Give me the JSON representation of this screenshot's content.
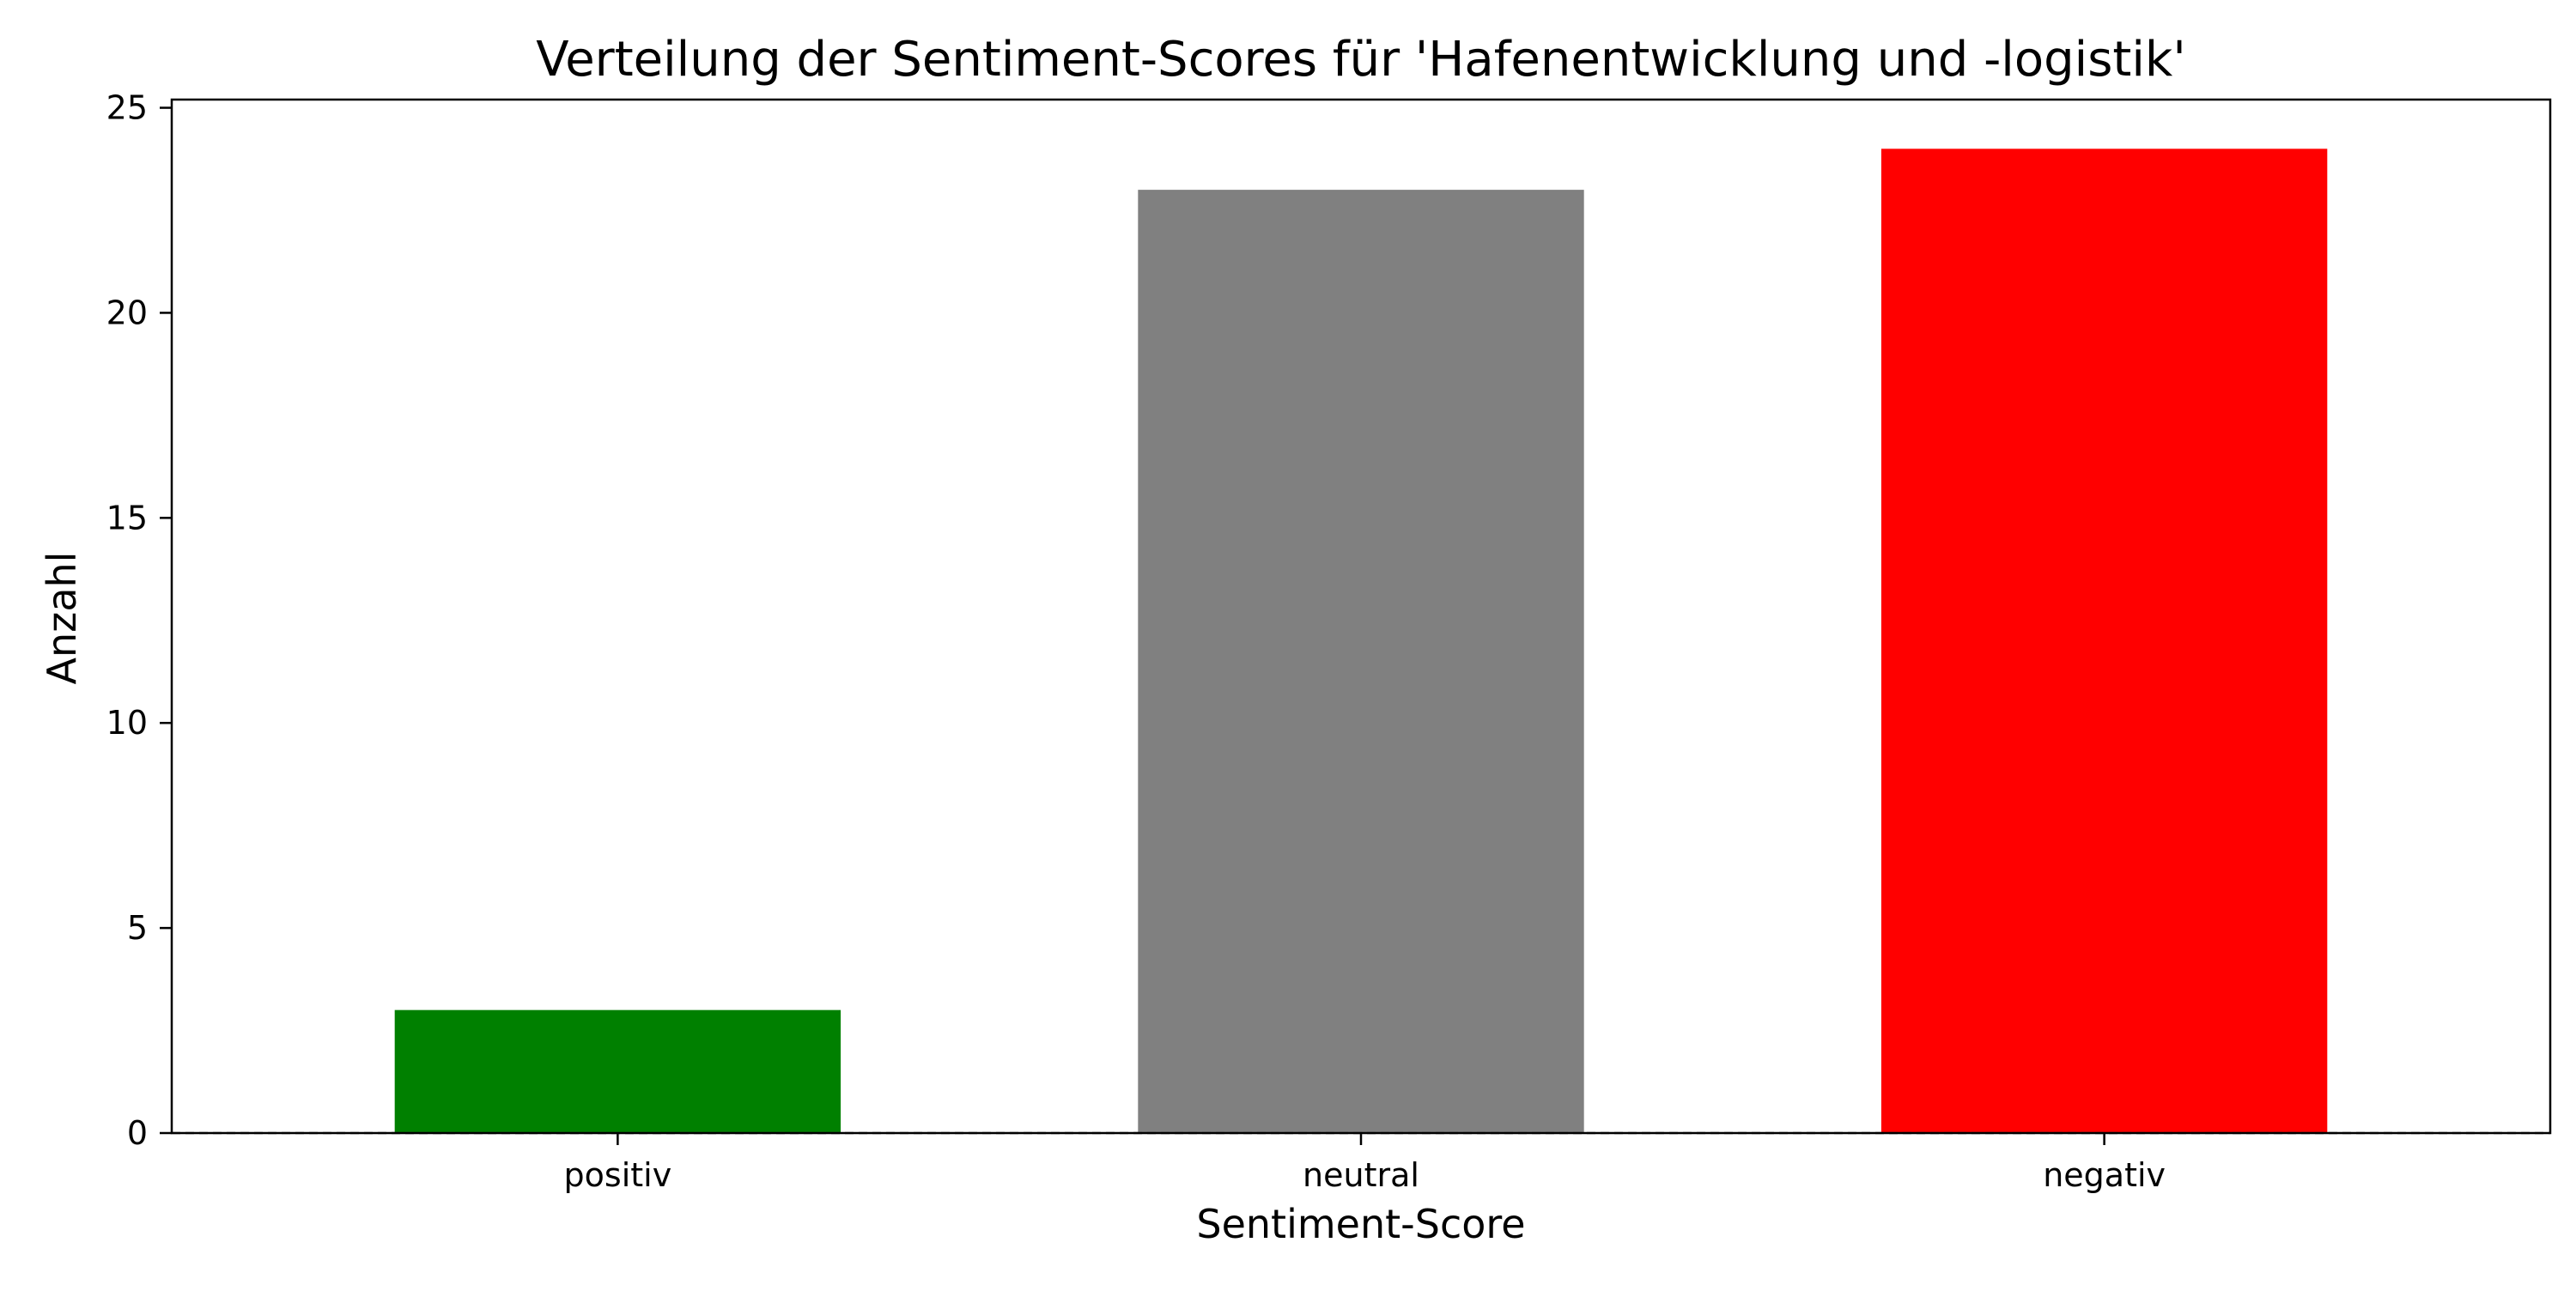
{
  "chart_data": {
    "type": "bar",
    "title": "Verteilung der Sentiment-Scores für 'Hafenentwicklung und -logistik'",
    "xlabel": "Sentiment-Score",
    "ylabel": "Anzahl",
    "categories": [
      "positiv",
      "neutral",
      "negativ"
    ],
    "values": [
      3,
      23,
      24
    ],
    "colors": [
      "#008000",
      "#808080",
      "#ff0000"
    ],
    "ylim": [
      0,
      25.2
    ],
    "yticks": [
      0,
      5,
      10,
      15,
      20,
      25
    ],
    "grid": false,
    "legend": false,
    "reference_line": {
      "y": 0,
      "style": "dashed"
    }
  }
}
